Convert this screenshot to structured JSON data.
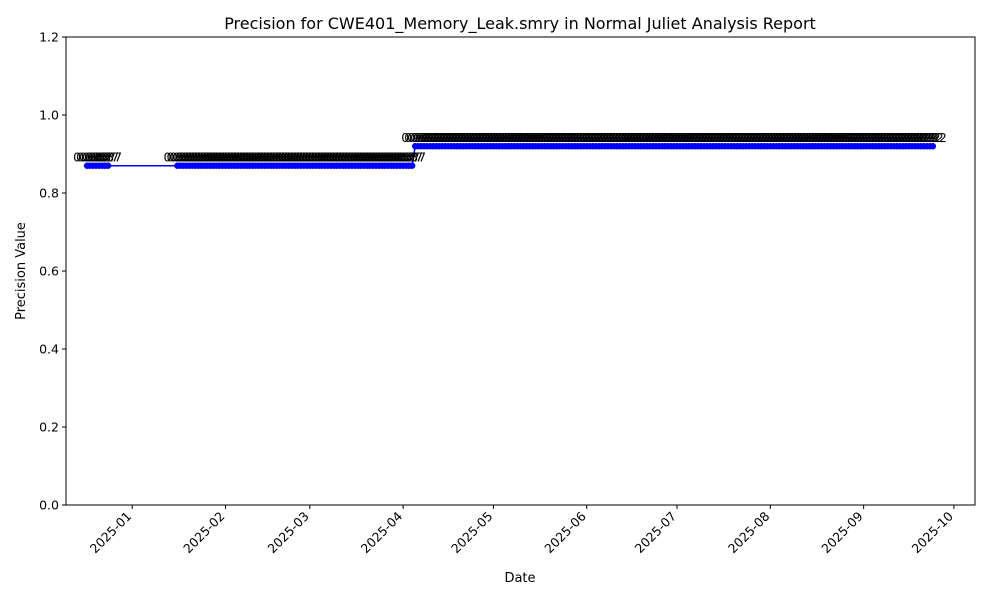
{
  "chart_data": {
    "type": "line",
    "title": "Precision for CWE401_Memory_Leak.smry in Normal Juliet Analysis Report",
    "xlabel": "Date",
    "ylabel": "Precision Value",
    "ylim": [
      0,
      1.2
    ],
    "yticks": [
      "0.0",
      "0.2",
      "0.4",
      "0.6",
      "0.8",
      "1.0",
      "1.2"
    ],
    "xlim": [
      "2024-12-10",
      "2025-10-08"
    ],
    "xticks": [
      "2025-01-01",
      "2025-02-01",
      "2025-03-01",
      "2025-04-01",
      "2025-05-01",
      "2025-06-01",
      "2025-07-01",
      "2025-08-01",
      "2025-09-01",
      "2025-10-01"
    ],
    "xtick_labels": [
      "2025-01",
      "2025-02",
      "2025-03",
      "2025-04",
      "2025-05",
      "2025-06",
      "2025-07",
      "2025-08",
      "2025-09",
      "2025-10"
    ],
    "grid": false,
    "legend": "none",
    "line_color": "#0000ff",
    "marker_color": "#0000ff",
    "series": [
      {
        "segments": [
          {
            "start": "2024-12-17",
            "end": "2024-12-24",
            "y": 0.87,
            "label": "0.87"
          },
          {
            "start": "2025-01-16",
            "end": "2025-04-04",
            "y": 0.87,
            "label": "0.87"
          },
          {
            "start": "2025-04-05",
            "end": "2025-09-24",
            "y": 0.92,
            "label": "0.92"
          }
        ]
      }
    ]
  }
}
